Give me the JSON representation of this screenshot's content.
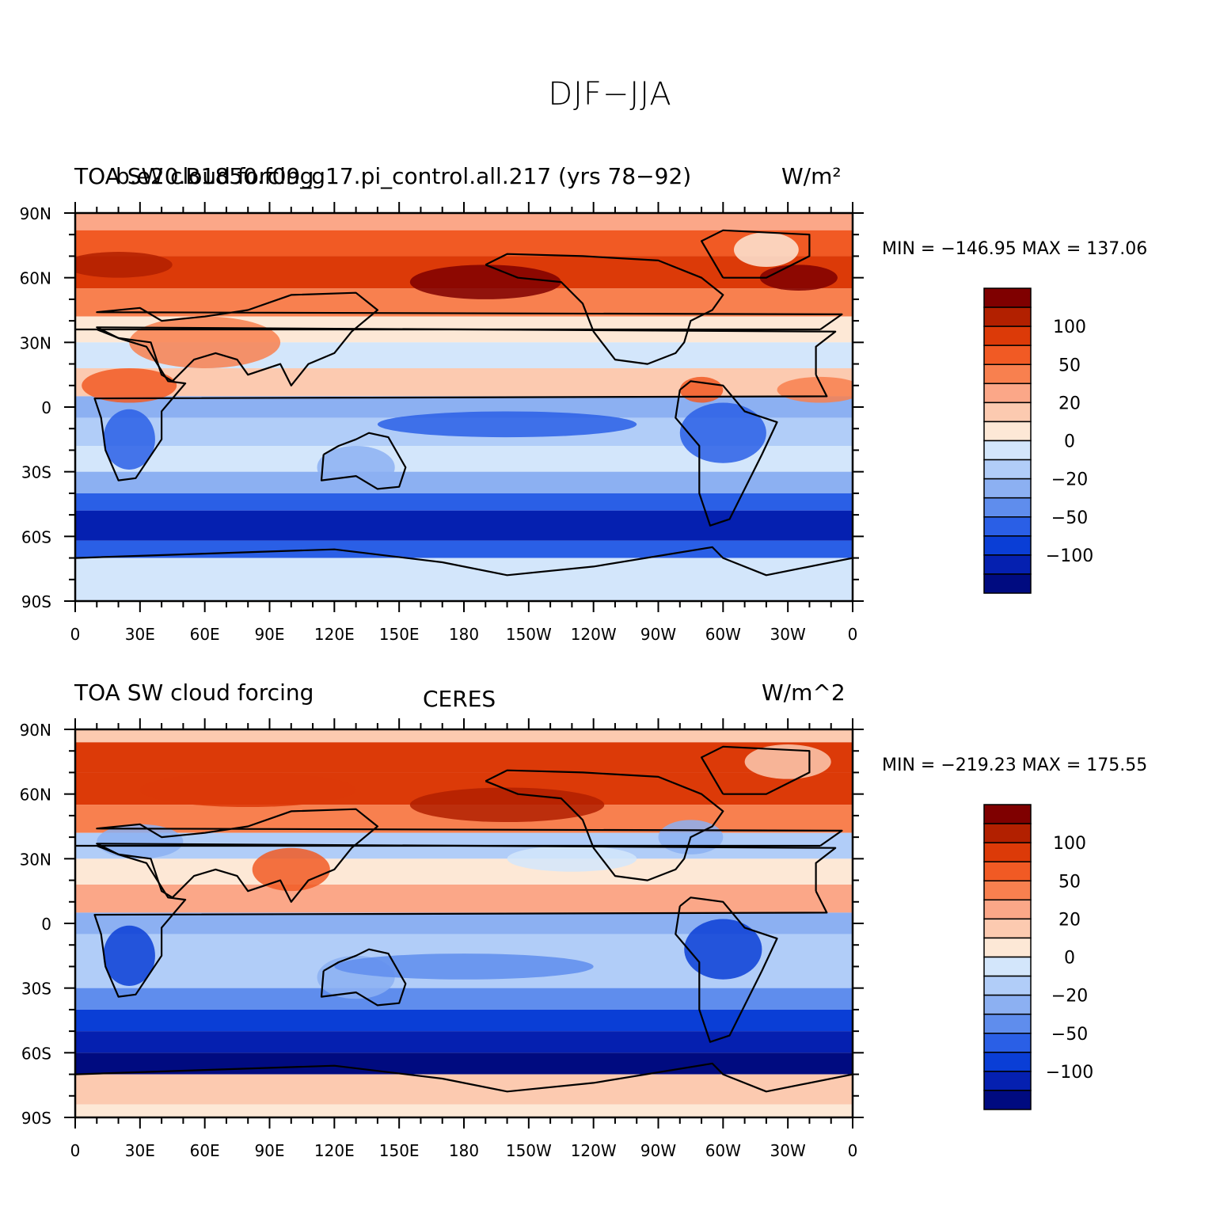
{
  "figure": {
    "title": "DJF−JJA"
  },
  "panels": [
    {
      "id": "model",
      "left_label": "TOA SW cloud forcing",
      "center_label": "b.e20.B1850.f09_g17.pi_control.all.217 (yrs 78−92)",
      "right_label": "W/m²",
      "min_max": "MIN = −146.95 MAX = 137.06"
    },
    {
      "id": "obs",
      "left_label": "TOA SW cloud forcing",
      "center_label": "CERES",
      "right_label": "W/m^2",
      "min_max": "MIN = −219.23 MAX = 175.55"
    }
  ],
  "chart_data": {
    "type": "heatmap",
    "variable": "TOA SW cloud forcing",
    "units": "W/m²",
    "season_difference": "DJF−JJA",
    "x_tick_labels": [
      "0",
      "30E",
      "60E",
      "90E",
      "120E",
      "150E",
      "180",
      "150W",
      "120W",
      "90W",
      "60W",
      "30W",
      "0"
    ],
    "y_tick_labels": [
      "90N",
      "60N",
      "30N",
      "0",
      "30S",
      "60S",
      "90S"
    ],
    "xlim": [
      0,
      360
    ],
    "ylim": [
      -90,
      90
    ],
    "colorbar": {
      "labels": [
        "100",
        "50",
        "20",
        "0",
        "−20",
        "−50",
        "−100"
      ],
      "colors": [
        "#7f0000",
        "#b22000",
        "#dc3a08",
        "#f15a24",
        "#f8804f",
        "#fba788",
        "#fccab0",
        "#fde8d6",
        "#d3e6fb",
        "#b1cdf8",
        "#8cb0f2",
        "#5f8ded",
        "#2a5fe6",
        "#0a3ed6",
        "#0520b0",
        "#000b80"
      ]
    },
    "model": {
      "min": -146.95,
      "max": 137.06
    },
    "ceres": {
      "min": -219.23,
      "max": 175.55
    }
  }
}
